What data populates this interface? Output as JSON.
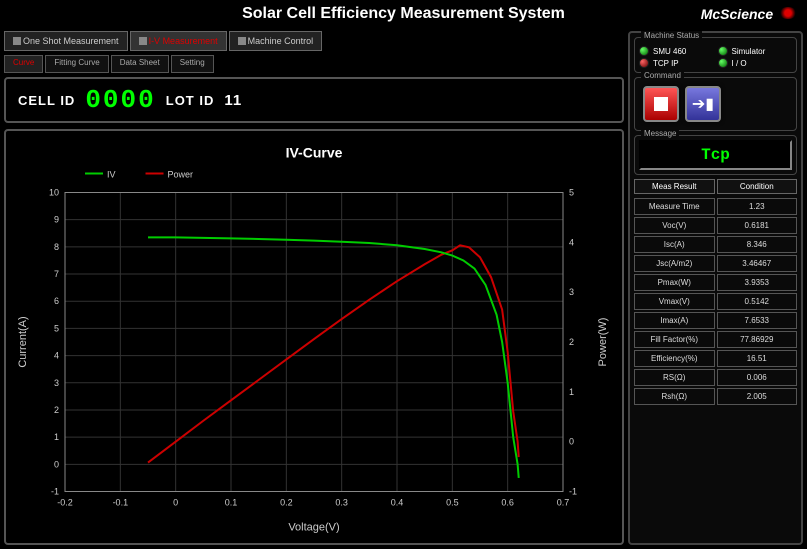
{
  "app": {
    "title": "Solar Cell Efficiency Measurement System",
    "brand": "McScience"
  },
  "main_tabs": [
    {
      "label": "One Shot Measurement",
      "active": false
    },
    {
      "label": "I-V Measurement",
      "active": true
    },
    {
      "label": "Machine Control",
      "active": false
    }
  ],
  "sub_tabs": [
    {
      "label": "Curve",
      "active": true
    },
    {
      "label": "Fitting Curve",
      "active": false
    },
    {
      "label": "Data Sheet",
      "active": false
    },
    {
      "label": "Setting",
      "active": false
    }
  ],
  "ids": {
    "cell_label": "CELL ID",
    "cell_value": "0000",
    "lot_label": "LOT ID",
    "lot_value": "11"
  },
  "status": {
    "group_title": "Machine Status",
    "items": [
      {
        "label": "SMU 460",
        "led": "green"
      },
      {
        "label": "Simulator",
        "led": "green"
      },
      {
        "label": "TCP IP",
        "led": "red"
      },
      {
        "label": "I / O",
        "led": "green"
      }
    ]
  },
  "command": {
    "group_title": "Command",
    "stop_label": "STOP"
  },
  "message": {
    "group_title": "Message",
    "text": "Tcp"
  },
  "results": {
    "header_left": "Meas Result",
    "header_right": "Condition",
    "rows": [
      {
        "k": "Measure Time",
        "v": "1.23"
      },
      {
        "k": "Voc(V)",
        "v": "0.6181"
      },
      {
        "k": "Isc(A)",
        "v": "8.346"
      },
      {
        "k": "Jsc(A/m2)",
        "v": "3.46467"
      },
      {
        "k": "Pmax(W)",
        "v": "3.9353"
      },
      {
        "k": "Vmax(V)",
        "v": "0.5142"
      },
      {
        "k": "Imax(A)",
        "v": "7.6533"
      },
      {
        "k": "Fill Factor(%)",
        "v": "77.86929"
      },
      {
        "k": "Efficiency(%)",
        "v": "16.51"
      },
      {
        "k": "RS(Ω)",
        "v": "0.006"
      },
      {
        "k": "Rsh(Ω)",
        "v": "2.005"
      }
    ]
  },
  "chart": {
    "title": "IV-Curve",
    "title_fontsize": 14,
    "title_color": "#ffffff",
    "background_color": "#000000",
    "plot_bg": "#000000",
    "grid_color": "#333333",
    "axis_color": "#888888",
    "text_color": "#cccccc",
    "text_fontsize": 9,
    "legend": {
      "items": [
        {
          "label": "IV",
          "color": "#00cc00"
        },
        {
          "label": "Power",
          "color": "#cc0000"
        }
      ],
      "position": "top-left"
    },
    "x": {
      "label": "Voltage(V)",
      "min": -0.2,
      "max": 0.7,
      "tick_step": 0.1,
      "ticks": [
        -0.2,
        -0.1,
        0,
        0.1,
        0.2,
        0.3,
        0.4,
        0.5,
        0.6,
        0.7
      ]
    },
    "y_left": {
      "label": "Current(A)",
      "color": "#00cc00",
      "min": -1,
      "max": 10,
      "tick_step": 1,
      "ticks": [
        -1,
        0,
        1,
        2,
        3,
        4,
        5,
        6,
        7,
        8,
        9,
        10
      ]
    },
    "y_right": {
      "label": "Power(W)",
      "color": "#cc0000",
      "min": -1,
      "max": 5,
      "tick_step": 1,
      "ticks": [
        -1,
        0,
        1,
        2,
        3,
        4,
        5
      ]
    },
    "series_iv": {
      "color": "#00cc00",
      "line_width": 2,
      "points": [
        [
          -0.05,
          8.35
        ],
        [
          0.0,
          8.35
        ],
        [
          0.05,
          8.33
        ],
        [
          0.1,
          8.31
        ],
        [
          0.15,
          8.29
        ],
        [
          0.2,
          8.26
        ],
        [
          0.25,
          8.23
        ],
        [
          0.3,
          8.19
        ],
        [
          0.35,
          8.14
        ],
        [
          0.4,
          8.06
        ],
        [
          0.45,
          7.92
        ],
        [
          0.48,
          7.8
        ],
        [
          0.5,
          7.68
        ],
        [
          0.52,
          7.5
        ],
        [
          0.54,
          7.2
        ],
        [
          0.56,
          6.6
        ],
        [
          0.58,
          5.5
        ],
        [
          0.59,
          4.5
        ],
        [
          0.6,
          3.0
        ],
        [
          0.61,
          1.0
        ],
        [
          0.618,
          0.0
        ],
        [
          0.62,
          -0.5
        ]
      ]
    },
    "series_power": {
      "color": "#cc0000",
      "line_width": 2,
      "points": [
        [
          -0.05,
          -0.42
        ],
        [
          0.0,
          0.0
        ],
        [
          0.05,
          0.42
        ],
        [
          0.1,
          0.83
        ],
        [
          0.15,
          1.24
        ],
        [
          0.2,
          1.65
        ],
        [
          0.25,
          2.06
        ],
        [
          0.3,
          2.46
        ],
        [
          0.35,
          2.85
        ],
        [
          0.4,
          3.22
        ],
        [
          0.45,
          3.56
        ],
        [
          0.48,
          3.75
        ],
        [
          0.5,
          3.84
        ],
        [
          0.514,
          3.94
        ],
        [
          0.53,
          3.9
        ],
        [
          0.55,
          3.7
        ],
        [
          0.57,
          3.3
        ],
        [
          0.59,
          2.65
        ],
        [
          0.6,
          1.8
        ],
        [
          0.61,
          0.61
        ],
        [
          0.618,
          0.0
        ],
        [
          0.62,
          -0.31
        ]
      ]
    }
  }
}
